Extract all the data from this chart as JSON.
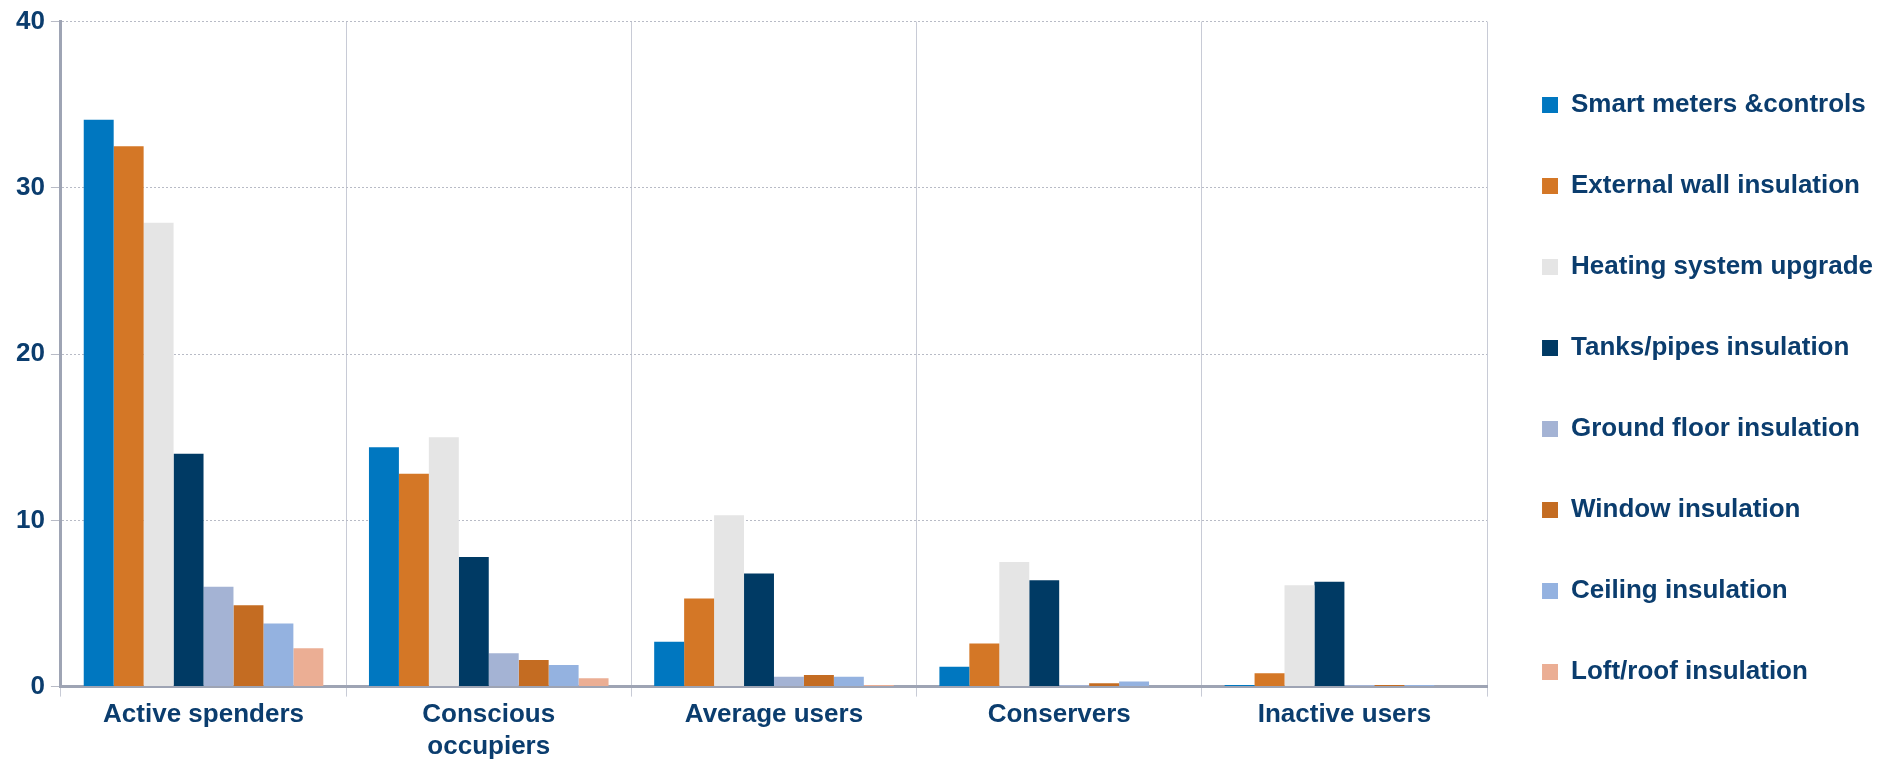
{
  "chart_data": {
    "type": "bar",
    "categories": [
      "Active spenders",
      "Conscious\noccupiers",
      "Average users",
      "Conservers",
      "Inactive users"
    ],
    "series": [
      {
        "name": "Smart meters &controls",
        "color": "#0077c0",
        "values": [
          34.1,
          14.4,
          2.7,
          1.2,
          0.1
        ]
      },
      {
        "name": "External wall insulation",
        "color": "#d47726",
        "values": [
          32.5,
          12.8,
          5.3,
          2.6,
          0.8
        ]
      },
      {
        "name": "Heating system upgrade",
        "color": "#e5e5e5",
        "values": [
          27.9,
          15.0,
          10.3,
          7.5,
          6.1
        ]
      },
      {
        "name": "Tanks/pipes insulation",
        "color": "#003a64",
        "values": [
          14.0,
          7.8,
          6.8,
          6.4,
          6.3
        ]
      },
      {
        "name": "Ground floor insulation",
        "color": "#a4b3d4",
        "values": [
          6.0,
          2.0,
          0.6,
          0.1,
          0.1
        ]
      },
      {
        "name": "Window insulation",
        "color": "#c46c22",
        "values": [
          4.9,
          1.6,
          0.7,
          0.2,
          0.1
        ]
      },
      {
        "name": "Ceiling insulation",
        "color": "#94b2e0",
        "values": [
          3.8,
          1.3,
          0.6,
          0.3,
          0.1
        ]
      },
      {
        "name": "Loft/roof insulation",
        "color": "#ebae94",
        "values": [
          2.3,
          0.5,
          0.1,
          0,
          0
        ]
      }
    ],
    "ylim": [
      0,
      40
    ],
    "yticks": [
      0,
      10,
      20,
      30,
      40
    ],
    "grid": true,
    "legend": "right"
  }
}
